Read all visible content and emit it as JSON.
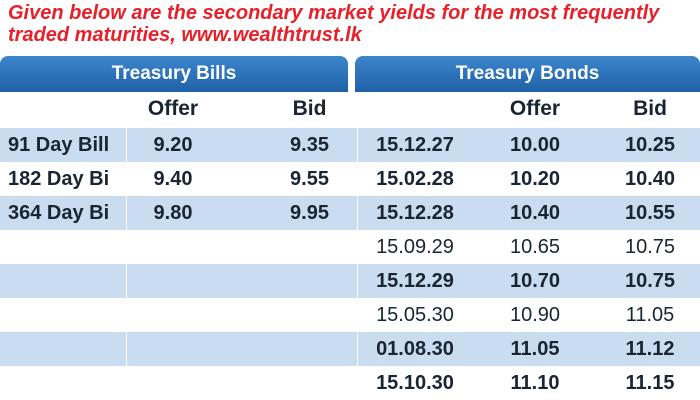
{
  "caption": "Given below are the secondary market yields for the most frequently traded maturities, www.wealthtrust.lk",
  "headers": {
    "bills": "Treasury Bills",
    "bonds": "Treasury Bonds",
    "bill_offer": "Offer",
    "bill_bid": "Bid",
    "bond_offer": "Offer",
    "bond_bid": "Bid"
  },
  "bills": [
    {
      "name": "91 Day Bill",
      "offer": "9.20",
      "bid": "9.35"
    },
    {
      "name": "182 Day Bi",
      "offer": "9.40",
      "bid": "9.55"
    },
    {
      "name": "364 Day Bi",
      "offer": "9.80",
      "bid": "9.95"
    }
  ],
  "bonds": [
    {
      "maturity": "15.12.27",
      "offer": "10.00",
      "bid": "10.25"
    },
    {
      "maturity": "15.02.28",
      "offer": "10.20",
      "bid": "10.40"
    },
    {
      "maturity": "15.12.28",
      "offer": "10.40",
      "bid": "10.55"
    },
    {
      "maturity": "15.09.29",
      "offer": "10.65",
      "bid": "10.75"
    },
    {
      "maturity": "15.12.29",
      "offer": "10.70",
      "bid": "10.75"
    },
    {
      "maturity": "15.05.30",
      "offer": "10.90",
      "bid": "11.05"
    },
    {
      "maturity": "01.08.30",
      "offer": "11.05",
      "bid": "11.12"
    },
    {
      "maturity": "15.10.30",
      "offer": "11.10",
      "bid": "11.15"
    }
  ]
}
